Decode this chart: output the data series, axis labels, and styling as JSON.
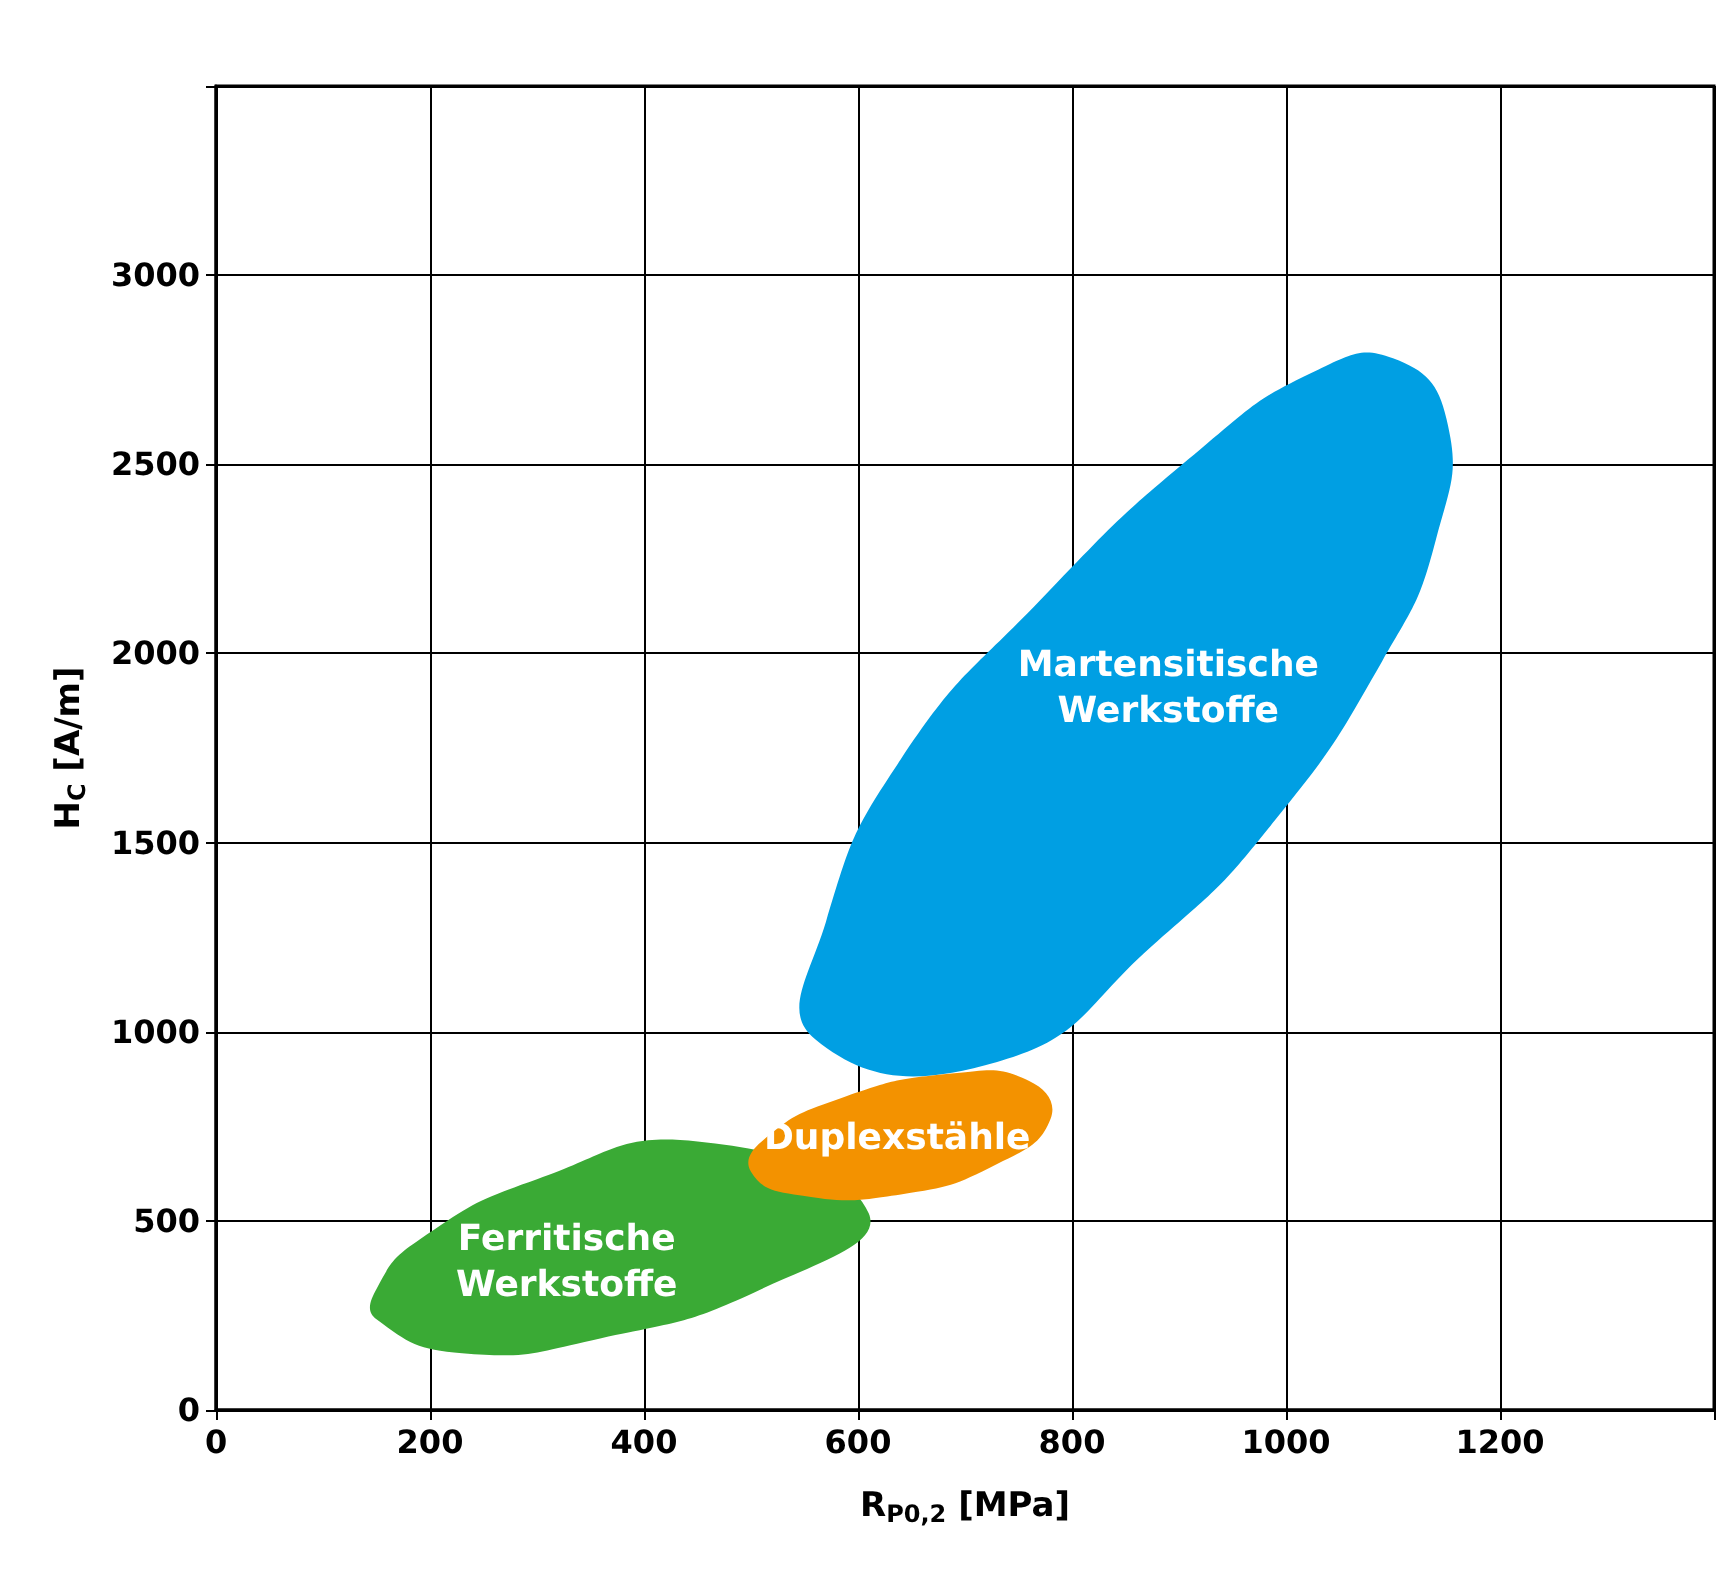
{
  "chart_data": {
    "type": "area",
    "xlabel": "R$_{P0,2}$ [MPa]",
    "ylabel": "H$_{C}$ [A/m]",
    "xlim": [
      0,
      1400
    ],
    "ylim": [
      0,
      3500
    ],
    "xticks": [
      0,
      200,
      400,
      600,
      800,
      1000,
      1200
    ],
    "yticks": [
      0,
      500,
      1000,
      1500,
      2000,
      2500,
      3000
    ],
    "grid": true,
    "series": [
      {
        "name": "Martensitische\nWerkstoffe",
        "color": "#009fe3",
        "x": [
          1100,
          1150,
          1140,
          1090,
          990,
          880,
          730,
          560,
          570,
          640,
          770,
          920,
          1030
        ],
        "values": [
          2780,
          2620,
          2300,
          1980,
          1560,
          1240,
          920,
          980,
          1290,
          1720,
          2140,
          2540,
          2750
        ]
      },
      {
        "name": "Ferritische\nWerkstoffe",
        "color": "#3aaa35",
        "x": [
          150,
          230,
          360,
          510,
          610,
          450,
          300,
          190,
          150
        ],
        "values": [
          240,
          150,
          190,
          320,
          520,
          710,
          610,
          450,
          320
        ]
      },
      {
        "name": "Duplexstähle",
        "color": "#f39200",
        "x": [
          500,
          540,
          640,
          730,
          780,
          760,
          690,
          580,
          510
        ],
        "values": [
          630,
          570,
          570,
          650,
          770,
          870,
          890,
          820,
          710
        ]
      }
    ]
  }
}
